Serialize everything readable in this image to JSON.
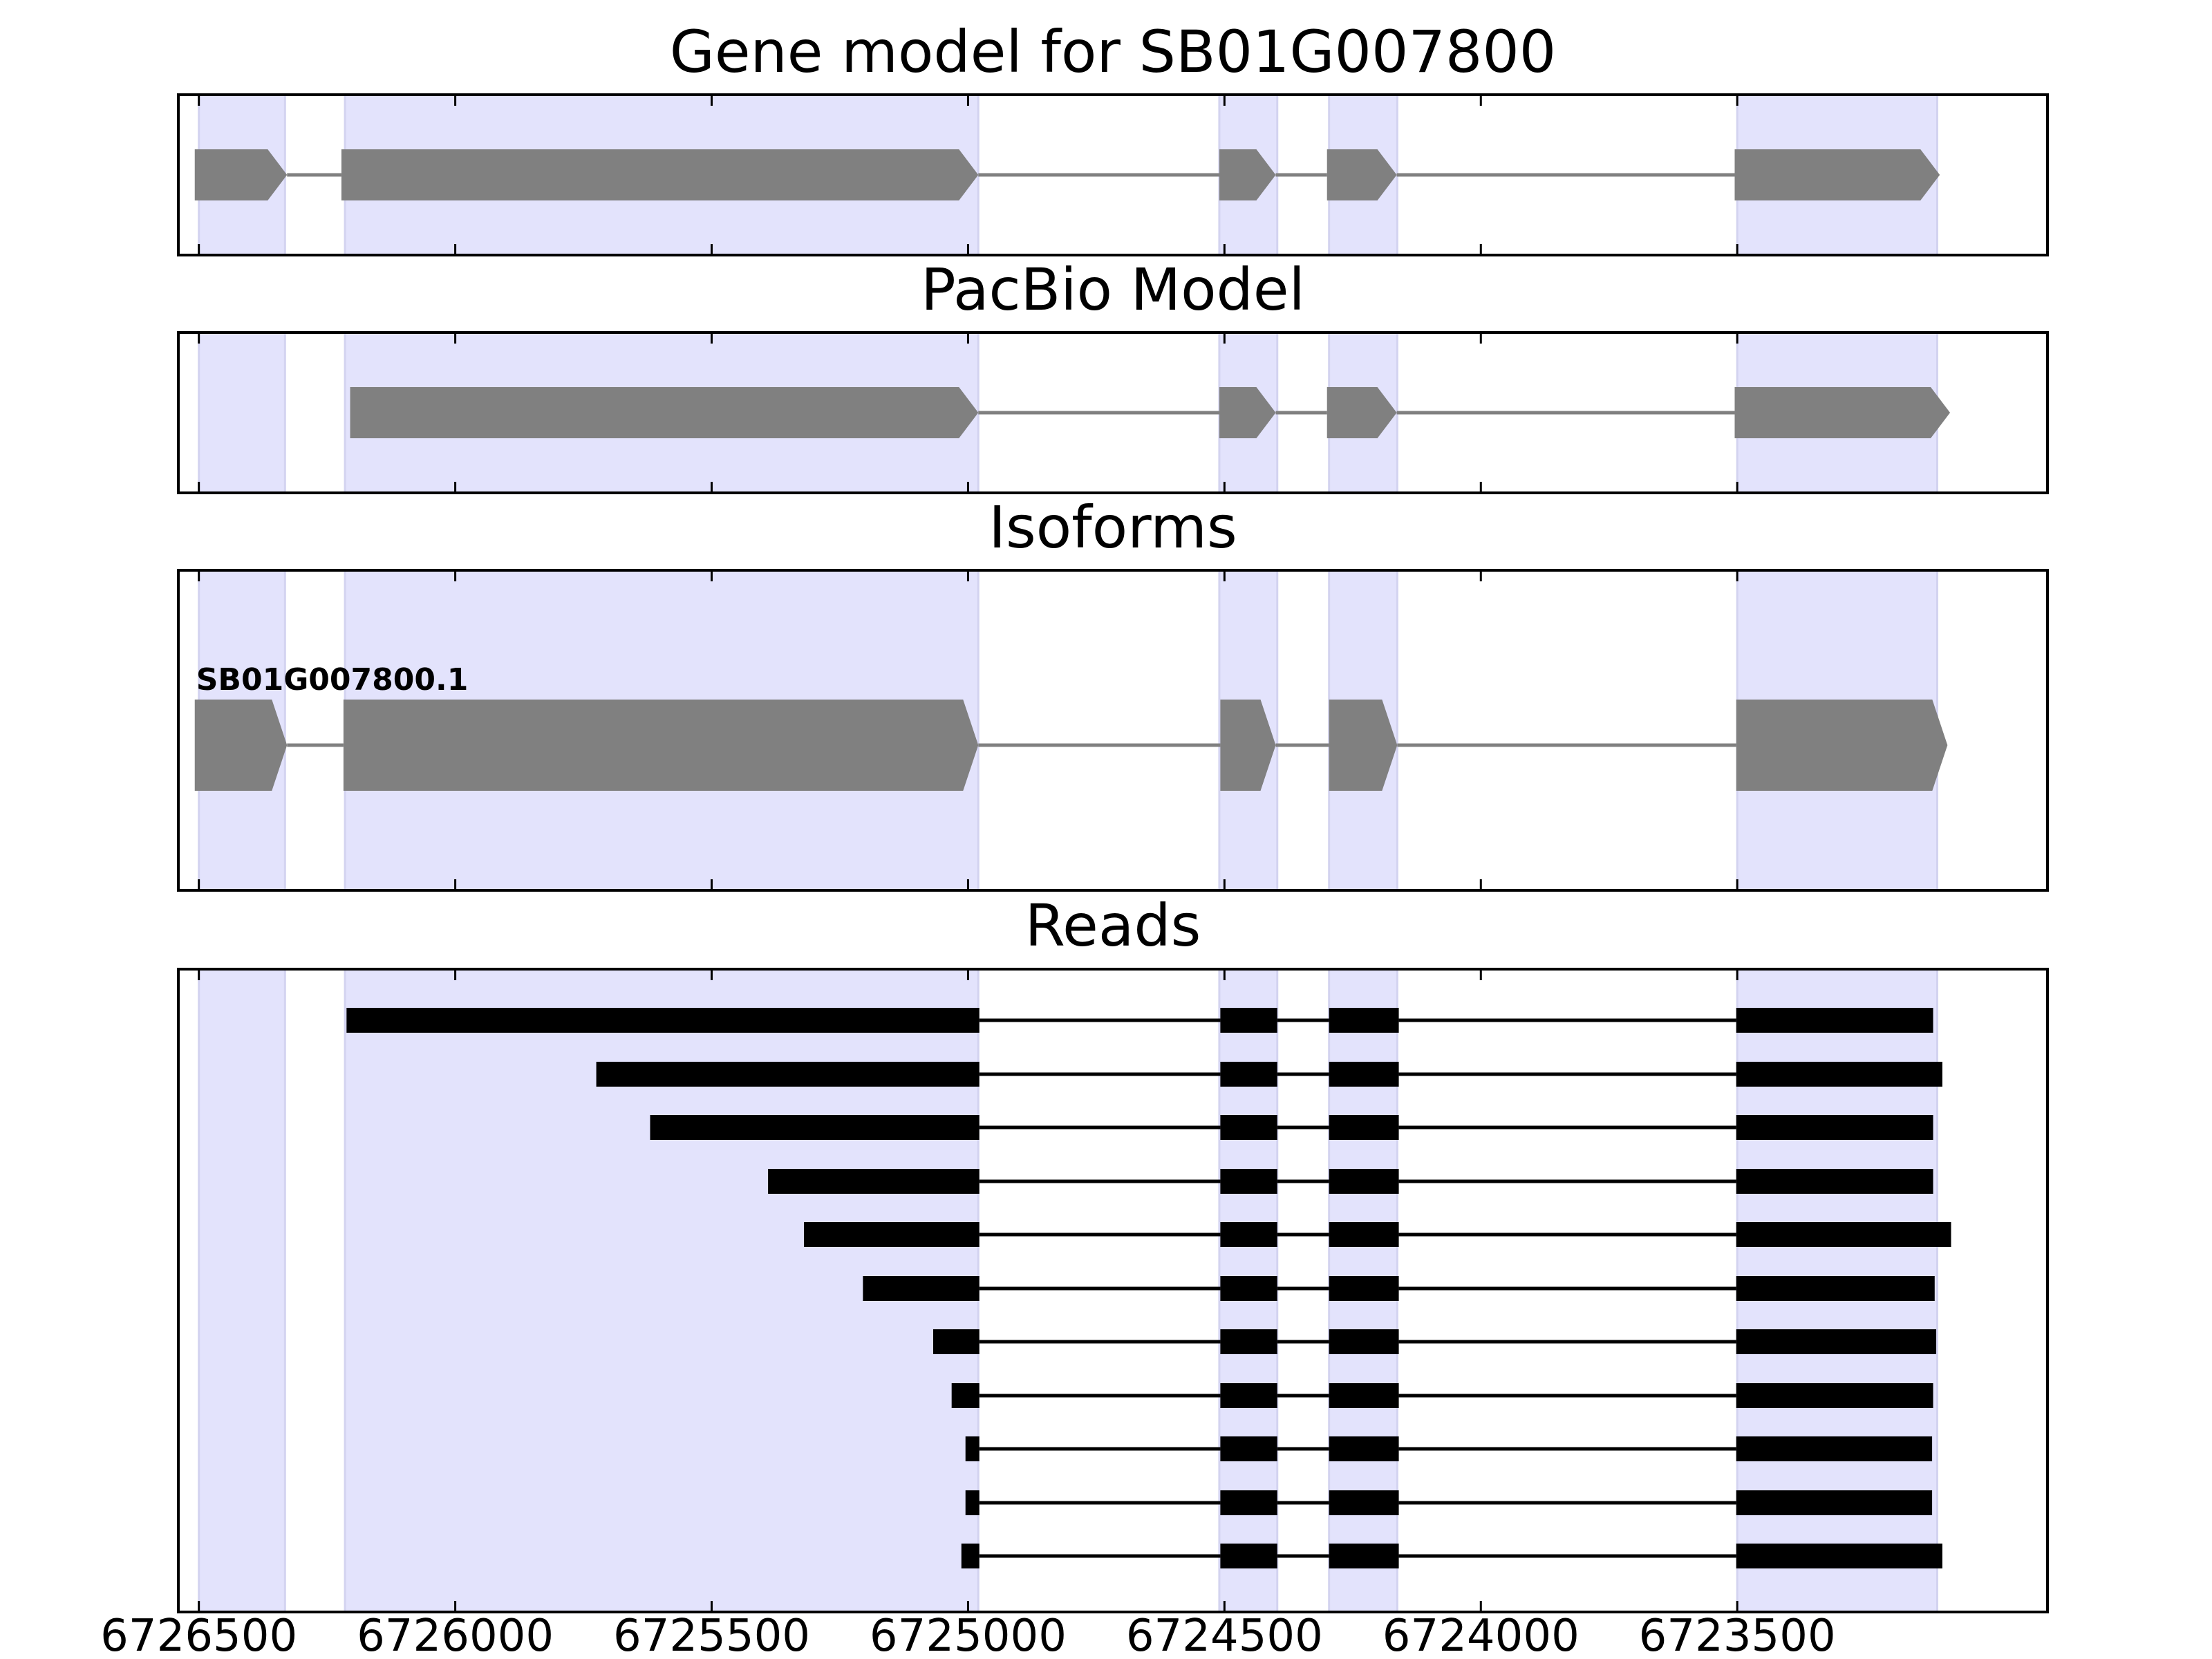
{
  "chart_data": {
    "type": "gene-model",
    "x_axis": {
      "direction": "reversed",
      "xlim": [
        6726540,
        6722895
      ],
      "ticks": [
        6726500,
        6726000,
        6725500,
        6725000,
        6724500,
        6724000,
        6723500
      ],
      "tick_labels": [
        "6726500",
        "6726000",
        "6725500",
        "6725000",
        "6724500",
        "6724000",
        "6723500"
      ]
    },
    "colors": {
      "highlight": "#e3e3fc",
      "highlight_edge": "#d3d3f0",
      "exon": "#808080",
      "read": "#000000"
    },
    "highlight_regions": [
      [
        6726500,
        6726332
      ],
      [
        6726215,
        6724980
      ],
      [
        6724510,
        6724397
      ],
      [
        6724296,
        6724163
      ],
      [
        6723500,
        6723110
      ]
    ],
    "panels": [
      {
        "title": "Gene model for SB01G007800",
        "transcripts": [
          {
            "label": "",
            "exons": [
              [
                6726508,
                6726328
              ],
              [
                6726222,
                6724980
              ],
              [
                6724510,
                6724400
              ],
              [
                6724300,
                6724164
              ],
              [
                6723505,
                6723105
              ]
            ]
          }
        ]
      },
      {
        "title": "PacBio Model",
        "transcripts": [
          {
            "label": "",
            "exons": [
              [
                6726205,
                6724980
              ],
              [
                6724510,
                6724400
              ],
              [
                6724300,
                6724164
              ],
              [
                6723505,
                6723085
              ]
            ]
          }
        ]
      },
      {
        "title": "Isoforms",
        "transcripts": [
          {
            "label": "SB01G007800.1",
            "exons": [
              [
                6726508,
                6726328
              ],
              [
                6726218,
                6724980
              ],
              [
                6724508,
                6724400
              ],
              [
                6724296,
                6724163
              ],
              [
                6723502,
                6723090
              ]
            ]
          }
        ]
      },
      {
        "title": "Reads",
        "reads": [
          [
            [
              6726212,
              6724978
            ],
            [
              6724508,
              6724397
            ],
            [
              6724296,
              6724160
            ],
            [
              6723502,
              6723118
            ]
          ],
          [
            [
              6725725,
              6724978
            ],
            [
              6724508,
              6724397
            ],
            [
              6724296,
              6724160
            ],
            [
              6723502,
              6723100
            ]
          ],
          [
            [
              6725620,
              6724978
            ],
            [
              6724508,
              6724397
            ],
            [
              6724296,
              6724160
            ],
            [
              6723502,
              6723118
            ]
          ],
          [
            [
              6725390,
              6724978
            ],
            [
              6724508,
              6724397
            ],
            [
              6724296,
              6724160
            ],
            [
              6723502,
              6723118
            ]
          ],
          [
            [
              6725320,
              6724978
            ],
            [
              6724508,
              6724397
            ],
            [
              6724296,
              6724160
            ],
            [
              6723502,
              6723083
            ]
          ],
          [
            [
              6725205,
              6724978
            ],
            [
              6724508,
              6724397
            ],
            [
              6724296,
              6724160
            ],
            [
              6723502,
              6723115
            ]
          ],
          [
            [
              6725068,
              6724978
            ],
            [
              6724508,
              6724397
            ],
            [
              6724296,
              6724160
            ],
            [
              6723502,
              6723112
            ]
          ],
          [
            [
              6725032,
              6724978
            ],
            [
              6724508,
              6724397
            ],
            [
              6724296,
              6724160
            ],
            [
              6723502,
              6723118
            ]
          ],
          [
            [
              6725005,
              6724978
            ],
            [
              6724508,
              6724397
            ],
            [
              6724296,
              6724160
            ],
            [
              6723502,
              6723120
            ]
          ],
          [
            [
              6725005,
              6724978
            ],
            [
              6724508,
              6724397
            ],
            [
              6724296,
              6724160
            ],
            [
              6723502,
              6723120
            ]
          ],
          [
            [
              6725013,
              6724978
            ],
            [
              6724508,
              6724397
            ],
            [
              6724296,
              6724160
            ],
            [
              6723502,
              6723100
            ]
          ]
        ]
      }
    ]
  }
}
